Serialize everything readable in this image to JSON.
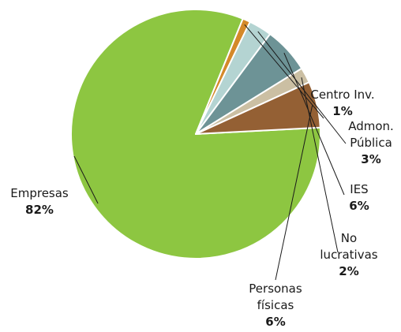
{
  "chart_data": {
    "type": "pie",
    "title": "",
    "slices": [
      {
        "label": "Empresas",
        "label_lines": [
          "Empresas"
        ],
        "value": 82,
        "value_label": "82%",
        "color": "#8dc641"
      },
      {
        "label": "Centro Inv.",
        "label_lines": [
          "Centro Inv."
        ],
        "value": 1,
        "value_label": "1%",
        "color": "#d4892a"
      },
      {
        "label": "Admon. Pública",
        "label_lines": [
          "Admon.",
          "Pública"
        ],
        "value": 3,
        "value_label": "3%",
        "color": "#b4d4d2"
      },
      {
        "label": "IES",
        "label_lines": [
          "IES"
        ],
        "value": 6,
        "value_label": "6%",
        "color": "#6d9396"
      },
      {
        "label": "No lucrativas",
        "label_lines": [
          "No",
          "lucrativas"
        ],
        "value": 2,
        "value_label": "2%",
        "color": "#cbbfa3"
      },
      {
        "label": "Personas físicas",
        "label_lines": [
          "Personas",
          "físicas"
        ],
        "value": 6,
        "value_label": "6%",
        "color": "#946034"
      }
    ]
  }
}
